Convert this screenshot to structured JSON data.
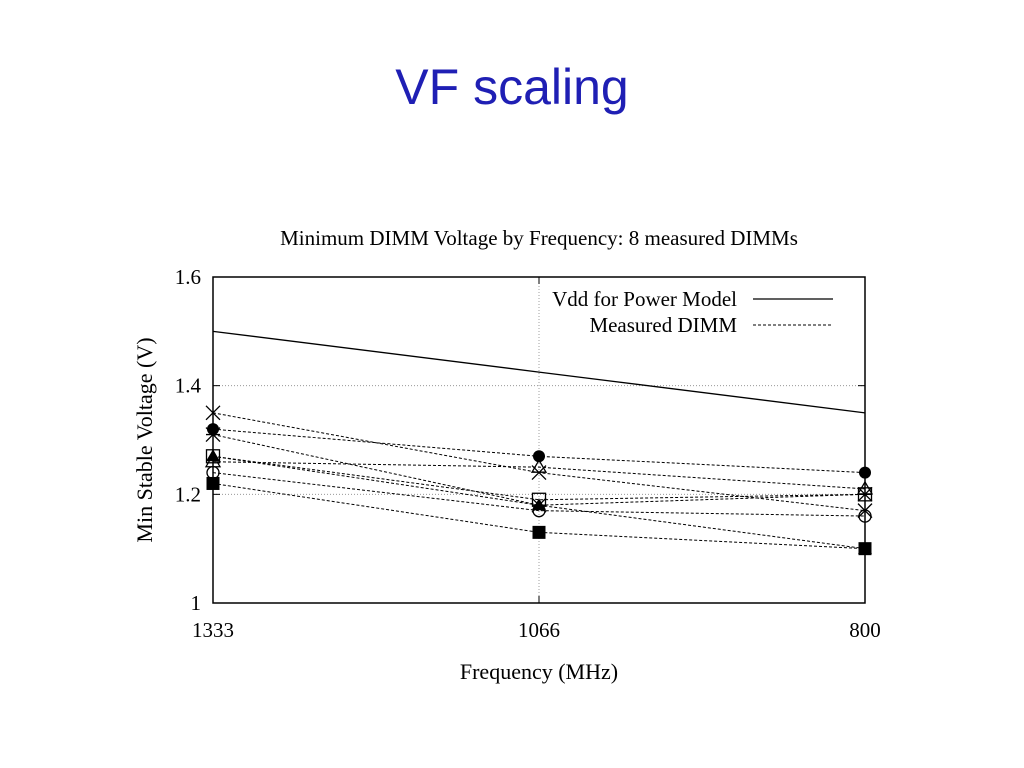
{
  "slide": {
    "title": "VF scaling"
  },
  "chart_data": {
    "type": "line",
    "title": "Minimum DIMM Voltage by Frequency: 8 measured DIMMs",
    "xlabel": "Frequency (MHz)",
    "ylabel": "Min Stable Voltage (V)",
    "categories": [
      "1333",
      "1066",
      "800"
    ],
    "ylim": [
      1,
      1.6
    ],
    "yticks": [
      "1",
      "1.2",
      "1.4",
      "1.6"
    ],
    "grid": true,
    "legend_position": "top-right",
    "legend": [
      {
        "label": "Vdd for Power Model",
        "style": "solid"
      },
      {
        "label": "Measured DIMM",
        "style": "dashed"
      }
    ],
    "model_series": {
      "values": [
        1.5,
        1.425,
        1.35
      ]
    },
    "measured_series": [
      {
        "values": [
          1.32,
          1.27,
          1.24
        ],
        "marker": "filled-circle"
      },
      {
        "values": [
          1.35,
          1.24,
          1.17
        ],
        "marker": "cross"
      },
      {
        "values": [
          1.31,
          1.18,
          1.2
        ],
        "marker": "star"
      },
      {
        "values": [
          1.27,
          1.19,
          1.2
        ],
        "marker": "open-square"
      },
      {
        "values": [
          1.26,
          1.25,
          1.21
        ],
        "marker": "open-triangle"
      },
      {
        "values": [
          1.24,
          1.17,
          1.16
        ],
        "marker": "open-circle"
      },
      {
        "values": [
          1.27,
          1.18,
          1.1
        ],
        "marker": "filled-triangle"
      },
      {
        "values": [
          1.22,
          1.13,
          1.1
        ],
        "marker": "filled-square"
      }
    ]
  }
}
